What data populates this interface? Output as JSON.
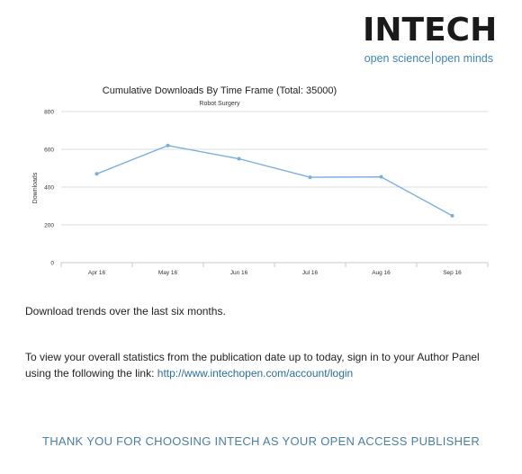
{
  "logo": {
    "wordmark": "INTECH",
    "tagline_left": "open science",
    "tagline_right": "open minds"
  },
  "chart_data": {
    "type": "line",
    "title": "Cumulative Downloads By Time Frame (Total: 35000)",
    "subtitle": "Robot Surgery",
    "ylabel": "Downloads",
    "xlabel": "",
    "categories": [
      "Apr 16",
      "May 16",
      "Jun 16",
      "Jul 16",
      "Aug 16",
      "Sep 16"
    ],
    "values": [
      470,
      620,
      550,
      452,
      454,
      248
    ],
    "ylim": [
      0,
      800
    ],
    "yticks": [
      "0",
      "200",
      "400",
      "600",
      "800"
    ],
    "grid": true,
    "line_color": "#7aaee0"
  },
  "body": {
    "description": "Download trends over the last six months.",
    "info_text": "To view your overall statistics from the publication date up to today, sign in to your Author Panel using the following the link: ",
    "link_text": "http://www.intechopen.com/account/login",
    "thanks": "THANK YOU FOR CHOOSING INTECH AS YOUR OPEN ACCESS PUBLISHER"
  }
}
